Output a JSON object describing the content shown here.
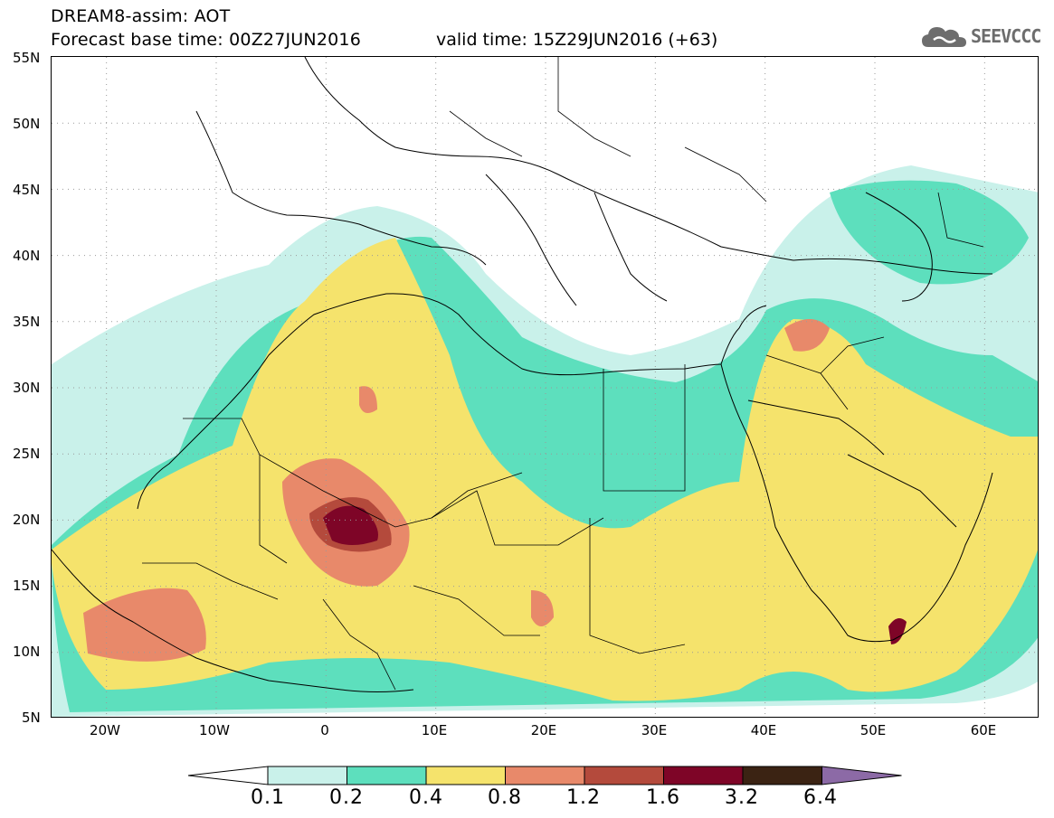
{
  "header": {
    "title_line1": "DREAM8-assim: AOT",
    "title_line2": "Forecast base time: 00Z27JUN2016",
    "valid_time": "valid time: 15Z29JUN2016 (+63)"
  },
  "logo": {
    "text": "SEEVCCC",
    "icon": "cloud-icon"
  },
  "map": {
    "lat_labels": [
      "55N",
      "50N",
      "45N",
      "40N",
      "35N",
      "30N",
      "25N",
      "20N",
      "15N",
      "10N",
      "5N"
    ],
    "lon_labels": [
      "20W",
      "10W",
      "0",
      "10E",
      "20E",
      "30E",
      "40E",
      "50E",
      "60E"
    ],
    "lon_range": [
      -25,
      65
    ],
    "lat_range": [
      5,
      55
    ],
    "grid": "dotted"
  },
  "legend": {
    "labels": [
      "0.1",
      "0.2",
      "0.4",
      "0.8",
      "1.2",
      "1.6",
      "3.2",
      "6.4"
    ],
    "colors": [
      "#ffffff",
      "#c9f1ea",
      "#5ddfbd",
      "#f5e36c",
      "#e8896a",
      "#b44a3c",
      "#7e0527",
      "#3b2313",
      "#8c6aa6"
    ]
  }
}
